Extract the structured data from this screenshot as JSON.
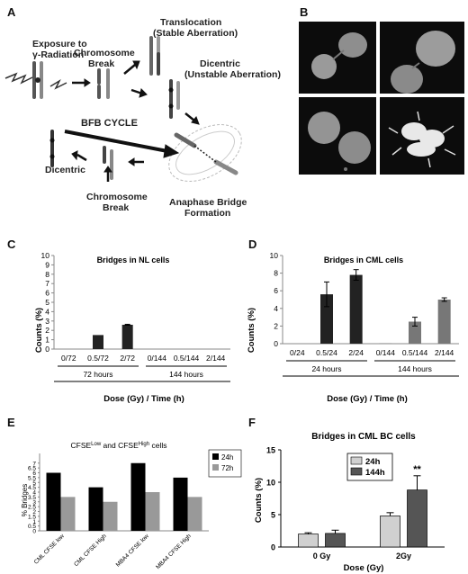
{
  "panels": {
    "A": "A",
    "B": "B",
    "C": "C",
    "D": "D",
    "E": "E",
    "F": "F"
  },
  "diagram": {
    "exposure": [
      "Exposure to",
      "γ-Radiation"
    ],
    "break_top": [
      "Chromosome",
      "Break"
    ],
    "translocation": [
      "Translocation",
      "(Stable Aberration)"
    ],
    "dicentric_unstable": [
      "Dicentric",
      "(Unstable Aberration)"
    ],
    "bfb": "BFB CYCLE",
    "dicentric": "Dicentric",
    "break_bottom": [
      "Chromosome",
      "Break"
    ],
    "anaphase": [
      "Anaphase Bridge",
      "Formation"
    ]
  },
  "chart_data": [
    {
      "panel": "C",
      "type": "bar",
      "title": "Bridges in NL cells",
      "ylabel": "Counts (%)",
      "xlabel": "Dose (Gy) / Time (h)",
      "ylim": [
        0,
        10
      ],
      "yticks": [
        0,
        1,
        2,
        3,
        4,
        5,
        6,
        7,
        8,
        9,
        10
      ],
      "categories": [
        "0/72",
        "0.5/72",
        "2/72",
        "0/144",
        "0.5/144",
        "2/144"
      ],
      "groups": [
        {
          "label": "72 hours",
          "from": 0,
          "to": 2
        },
        {
          "label": "144 hours",
          "from": 3,
          "to": 5
        }
      ],
      "values": [
        0,
        1.5,
        2.6,
        0,
        0,
        0
      ],
      "errors": [
        0,
        0,
        0.05,
        0,
        0,
        0
      ],
      "colors": [
        "#222222",
        "#222222",
        "#222222",
        "#222222",
        "#222222",
        "#222222"
      ]
    },
    {
      "panel": "D",
      "type": "bar",
      "title": "Bridges in CML cells",
      "ylabel": "Counts (%)",
      "xlabel": "Dose (Gy) / Time (h)",
      "ylim": [
        0,
        10
      ],
      "yticks": [
        0,
        2,
        4,
        6,
        8,
        10
      ],
      "categories": [
        "0/24",
        "0.5/24",
        "2/24",
        "0/144",
        "0.5/144",
        "2/144"
      ],
      "groups": [
        {
          "label": "24 hours",
          "from": 0,
          "to": 2
        },
        {
          "label": "144 hours",
          "from": 3,
          "to": 5
        }
      ],
      "values": [
        0,
        5.6,
        7.8,
        0.05,
        2.5,
        5.0
      ],
      "errors": [
        0,
        1.4,
        0.6,
        0,
        0.5,
        0.2
      ],
      "colors": [
        "#222222",
        "#222222",
        "#222222",
        "#777777",
        "#777777",
        "#777777"
      ]
    },
    {
      "panel": "E",
      "type": "bar",
      "title": "CFSE",
      "title_parts": [
        {
          "t": "CFSE",
          "sup": false
        },
        {
          "t": "Low",
          "sup": true
        },
        {
          "t": " and CFSE",
          "sup": false
        },
        {
          "t": "High",
          "sup": true
        },
        {
          "t": " cells",
          "sup": false
        }
      ],
      "ylabel": "% Bridges",
      "ylim": [
        0,
        8
      ],
      "yticks": [
        0,
        0.5,
        1,
        1.5,
        2,
        2.5,
        3,
        3.5,
        4,
        4.5,
        5,
        5.5,
        6,
        6.5,
        7
      ],
      "categories": [
        "CML CFSE low",
        "CML CFSE High",
        "MBA4 CFSE low",
        "MBA4 CFSE High"
      ],
      "series": [
        {
          "name": "24h",
          "color": "#000000",
          "values": [
            6.0,
            4.5,
            7.0,
            5.5
          ]
        },
        {
          "name": "72h",
          "color": "#999999",
          "values": [
            3.5,
            3.0,
            4.0,
            3.5
          ]
        }
      ]
    },
    {
      "panel": "F",
      "type": "bar",
      "title": "Bridges in CML BC cells",
      "ylabel": "Counts (%)",
      "xlabel": "Dose (Gy)",
      "ylim": [
        0,
        15
      ],
      "yticks": [
        0,
        5,
        10,
        15
      ],
      "categories": [
        "0 Gy",
        "2Gy"
      ],
      "series": [
        {
          "name": "24h",
          "color": "#d0d0d0",
          "values": [
            2.0,
            4.8
          ],
          "errors": [
            0.2,
            0.5
          ]
        },
        {
          "name": "144h",
          "color": "#555555",
          "values": [
            2.1,
            8.8
          ],
          "errors": [
            0.5,
            2.2
          ]
        }
      ],
      "annotation": "**"
    }
  ]
}
